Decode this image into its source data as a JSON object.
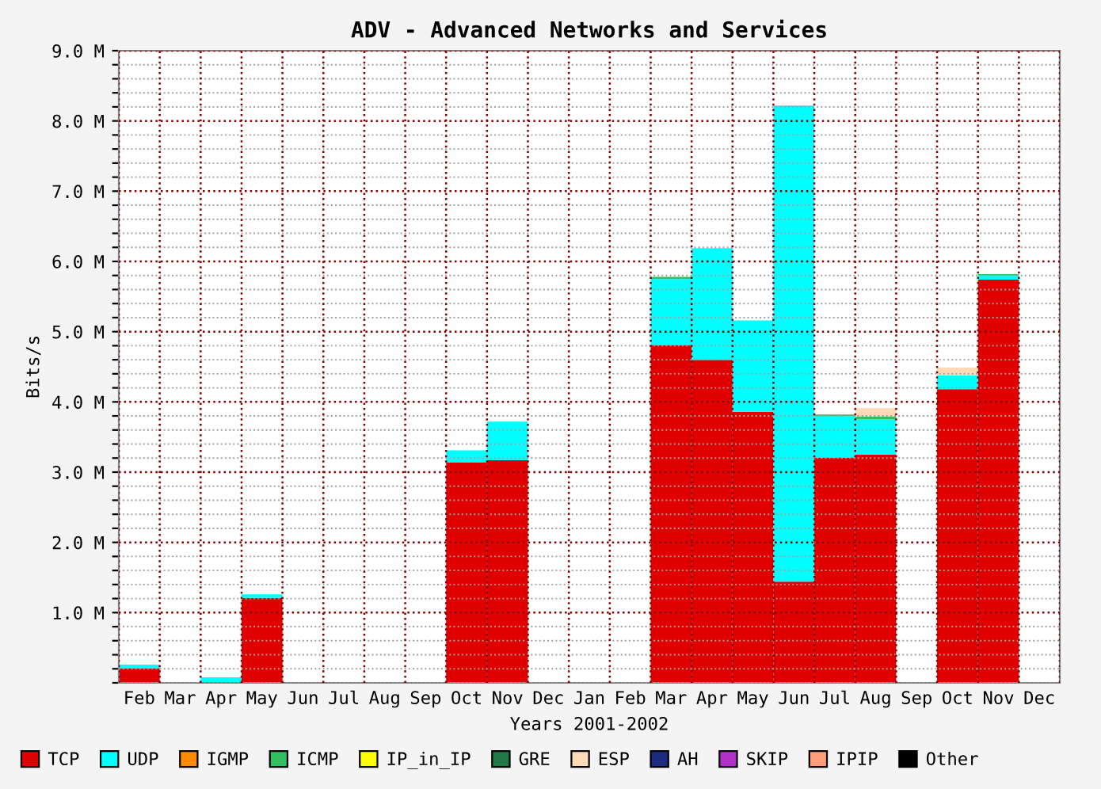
{
  "chart_data": {
    "type": "bar",
    "stacked": true,
    "title": "ADV - Advanced Networks and Services",
    "xlabel": "Years 2001-2002",
    "ylabel": "Bits/s",
    "categories": [
      "Feb",
      "Mar",
      "Apr",
      "May",
      "Jun",
      "Jul",
      "Aug",
      "Sep",
      "Oct",
      "Nov",
      "Dec",
      "Jan",
      "Feb",
      "Mar",
      "Apr",
      "May",
      "Jun",
      "Jul",
      "Aug",
      "Sep",
      "Oct",
      "Nov",
      "Dec"
    ],
    "series": [
      {
        "name": "TCP",
        "color": "#e00000",
        "values": [
          0.21,
          0,
          0,
          1.21,
          0,
          0,
          0,
          0,
          3.14,
          3.17,
          0,
          0,
          0,
          4.81,
          4.6,
          3.86,
          1.44,
          3.21,
          3.25,
          0,
          4.18,
          5.74,
          0
        ]
      },
      {
        "name": "UDP",
        "color": "#00ffff",
        "values": [
          0.05,
          0,
          0.08,
          0.05,
          0,
          0,
          0,
          0,
          0.17,
          0.55,
          0,
          0,
          0,
          0.94,
          1.59,
          1.3,
          6.78,
          0.59,
          0.5,
          0,
          0.2,
          0.06,
          0
        ]
      },
      {
        "name": "IGMP",
        "color": "#ff8c00",
        "values": [
          0,
          0,
          0,
          0,
          0,
          0,
          0,
          0,
          0,
          0,
          0,
          0,
          0,
          0,
          0,
          0,
          0,
          0,
          0,
          0,
          0,
          0,
          0
        ]
      },
      {
        "name": "ICMP",
        "color": "#30c060",
        "values": [
          0,
          0,
          0,
          0,
          0,
          0,
          0,
          0,
          0,
          0,
          0,
          0,
          0,
          0.03,
          0,
          0,
          0,
          0.02,
          0.04,
          0,
          0,
          0.02,
          0
        ]
      },
      {
        "name": "IP_in_IP",
        "color": "#ffff00",
        "values": [
          0,
          0,
          0,
          0,
          0,
          0,
          0,
          0,
          0,
          0,
          0,
          0,
          0,
          0,
          0,
          0,
          0,
          0,
          0,
          0,
          0,
          0,
          0
        ]
      },
      {
        "name": "GRE",
        "color": "#207a48",
        "values": [
          0,
          0,
          0,
          0,
          0,
          0,
          0,
          0,
          0,
          0,
          0,
          0,
          0,
          0,
          0,
          0,
          0,
          0,
          0,
          0,
          0,
          0,
          0
        ]
      },
      {
        "name": "ESP",
        "color": "#ffdab9",
        "values": [
          0,
          0,
          0,
          0,
          0,
          0,
          0,
          0,
          0,
          0,
          0,
          0,
          0,
          0,
          0,
          0,
          0,
          0,
          0.12,
          0,
          0.11,
          0,
          0
        ]
      },
      {
        "name": "AH",
        "color": "#1c2c80",
        "values": [
          0,
          0,
          0,
          0,
          0,
          0,
          0,
          0,
          0,
          0,
          0,
          0,
          0,
          0,
          0,
          0,
          0,
          0,
          0,
          0,
          0,
          0,
          0
        ]
      },
      {
        "name": "SKIP",
        "color": "#b030c8",
        "values": [
          0,
          0,
          0,
          0,
          0,
          0,
          0,
          0,
          0,
          0,
          0,
          0,
          0,
          0,
          0,
          0,
          0,
          0,
          0,
          0,
          0,
          0,
          0
        ]
      },
      {
        "name": "IPIP",
        "color": "#ffa07a",
        "values": [
          0,
          0,
          0,
          0,
          0,
          0,
          0,
          0,
          0,
          0,
          0,
          0,
          0,
          0,
          0,
          0,
          0,
          0,
          0,
          0,
          0,
          0,
          0
        ]
      },
      {
        "name": "Other",
        "color": "#000000",
        "values": [
          0,
          0,
          0,
          0,
          0,
          0,
          0,
          0,
          0,
          0,
          0,
          0,
          0,
          0,
          0,
          0,
          0,
          0,
          0,
          0,
          0,
          0,
          0
        ]
      }
    ],
    "ylim": [
      0,
      9
    ],
    "yticks": [
      {
        "value": 0,
        "label": null
      },
      {
        "value": 0.2,
        "label": null
      },
      {
        "value": 0.4,
        "label": null
      },
      {
        "value": 0.6,
        "label": null
      },
      {
        "value": 0.8,
        "label": null
      },
      {
        "value": 1,
        "label": "1.0 M"
      },
      {
        "value": 1.2,
        "label": null
      },
      {
        "value": 1.4,
        "label": null
      },
      {
        "value": 1.6,
        "label": null
      },
      {
        "value": 1.8,
        "label": null
      },
      {
        "value": 2,
        "label": "2.0 M"
      },
      {
        "value": 2.2,
        "label": null
      },
      {
        "value": 2.4,
        "label": null
      },
      {
        "value": 2.6,
        "label": null
      },
      {
        "value": 2.8,
        "label": null
      },
      {
        "value": 3,
        "label": "3.0 M"
      },
      {
        "value": 3.2,
        "label": null
      },
      {
        "value": 3.4,
        "label": null
      },
      {
        "value": 3.6,
        "label": null
      },
      {
        "value": 3.8,
        "label": null
      },
      {
        "value": 4,
        "label": "4.0 M"
      },
      {
        "value": 4.2,
        "label": null
      },
      {
        "value": 4.4,
        "label": null
      },
      {
        "value": 4.6,
        "label": null
      },
      {
        "value": 4.8,
        "label": null
      },
      {
        "value": 5,
        "label": "5.0 M"
      },
      {
        "value": 5.2,
        "label": null
      },
      {
        "value": 5.4,
        "label": null
      },
      {
        "value": 5.6,
        "label": null
      },
      {
        "value": 5.8,
        "label": null
      },
      {
        "value": 6,
        "label": "6.0 M"
      },
      {
        "value": 6.2,
        "label": null
      },
      {
        "value": 6.4,
        "label": null
      },
      {
        "value": 6.6,
        "label": null
      },
      {
        "value": 6.8,
        "label": null
      },
      {
        "value": 7,
        "label": "7.0 M"
      },
      {
        "value": 7.2,
        "label": null
      },
      {
        "value": 7.4,
        "label": null
      },
      {
        "value": 7.6,
        "label": null
      },
      {
        "value": 7.8,
        "label": null
      },
      {
        "value": 8,
        "label": "8.0 M"
      },
      {
        "value": 8.2,
        "label": null
      },
      {
        "value": 8.4,
        "label": null
      },
      {
        "value": 8.6,
        "label": null
      },
      {
        "value": 8.8,
        "label": null
      },
      {
        "value": 9,
        "label": "9.0 M"
      }
    ],
    "grid": true,
    "legend": "bottom"
  }
}
